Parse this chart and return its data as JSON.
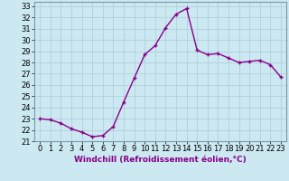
{
  "x": [
    0,
    1,
    2,
    3,
    4,
    5,
    6,
    7,
    8,
    9,
    10,
    11,
    12,
    13,
    14,
    15,
    16,
    17,
    18,
    19,
    20,
    21,
    22,
    23
  ],
  "y": [
    23.0,
    22.9,
    22.6,
    22.1,
    21.8,
    21.4,
    21.5,
    22.3,
    24.5,
    26.6,
    28.7,
    29.5,
    31.1,
    32.3,
    32.8,
    29.1,
    28.7,
    28.8,
    28.4,
    28.0,
    28.1,
    28.2,
    27.8,
    26.7
  ],
  "line_color": "#880088",
  "marker": "+",
  "bg_color": "#cce8f0",
  "grid_color": "#aaccdd",
  "border_color": "#7799aa",
  "xlabel": "Windchill (Refroidissement éolien,°C)",
  "xlim": [
    -0.5,
    23.5
  ],
  "ylim": [
    21,
    33.4
  ],
  "yticks": [
    21,
    22,
    23,
    24,
    25,
    26,
    27,
    28,
    29,
    30,
    31,
    32,
    33
  ],
  "xticks": [
    0,
    1,
    2,
    3,
    4,
    5,
    6,
    7,
    8,
    9,
    10,
    11,
    12,
    13,
    14,
    15,
    16,
    17,
    18,
    19,
    20,
    21,
    22,
    23
  ],
  "label_fontsize": 6.5,
  "tick_fontsize": 6,
  "line_width": 1.0,
  "marker_size": 3.5,
  "marker_edge_width": 1.0
}
